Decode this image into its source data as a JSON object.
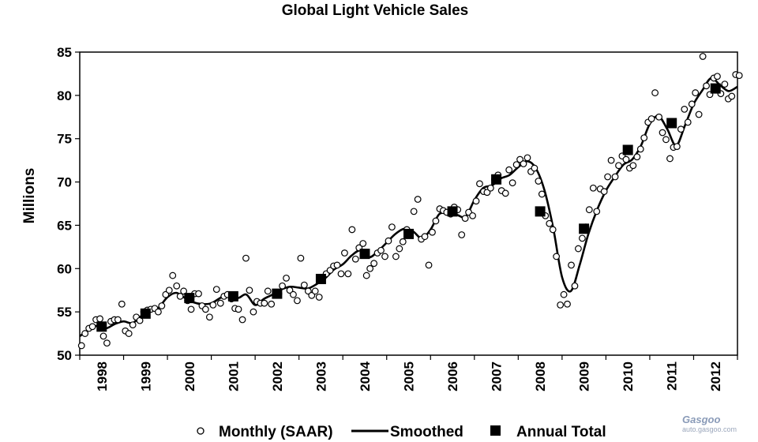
{
  "chart_data": {
    "type": "line",
    "title": "Global Light Vehicle Sales",
    "ylabel": "Millions",
    "xlabel": "",
    "ylim": [
      50,
      85
    ],
    "xlim": [
      1998.0,
      2013.0
    ],
    "yticks": [
      50,
      55,
      60,
      65,
      70,
      75,
      80,
      85
    ],
    "categories": [
      "1998",
      "1999",
      "2000",
      "2001",
      "2002",
      "2003",
      "2004",
      "2005",
      "2006",
      "2007",
      "2008",
      "2009",
      "2010",
      "2011",
      "2012"
    ],
    "grid": false,
    "legend_position": "bottom",
    "series": [
      {
        "name": "Monthly (SAAR)",
        "marker": "open-circle",
        "points": [
          [
            1998.04,
            51.1
          ],
          [
            1998.12,
            52.5
          ],
          [
            1998.21,
            53.1
          ],
          [
            1998.29,
            53.3
          ],
          [
            1998.37,
            54.1
          ],
          [
            1998.46,
            54.2
          ],
          [
            1998.54,
            52.2
          ],
          [
            1998.62,
            51.4
          ],
          [
            1998.71,
            53.9
          ],
          [
            1998.79,
            54.1
          ],
          [
            1998.87,
            54.1
          ],
          [
            1998.96,
            55.9
          ],
          [
            1999.04,
            52.8
          ],
          [
            1999.12,
            52.5
          ],
          [
            1999.21,
            53.5
          ],
          [
            1999.29,
            54.4
          ],
          [
            1999.37,
            54.0
          ],
          [
            1999.46,
            55.0
          ],
          [
            1999.54,
            55.2
          ],
          [
            1999.62,
            55.3
          ],
          [
            1999.71,
            55.4
          ],
          [
            1999.79,
            55.0
          ],
          [
            1999.87,
            55.7
          ],
          [
            1999.96,
            57.0
          ],
          [
            2000.04,
            57.5
          ],
          [
            2000.12,
            59.2
          ],
          [
            2000.21,
            58.0
          ],
          [
            2000.29,
            56.8
          ],
          [
            2000.37,
            57.4
          ],
          [
            2000.46,
            56.3
          ],
          [
            2000.54,
            55.3
          ],
          [
            2000.62,
            57.1
          ],
          [
            2000.71,
            57.1
          ],
          [
            2000.79,
            55.7
          ],
          [
            2000.87,
            55.3
          ],
          [
            2000.96,
            54.4
          ],
          [
            2001.04,
            55.8
          ],
          [
            2001.12,
            57.6
          ],
          [
            2001.21,
            56.0
          ],
          [
            2001.29,
            56.8
          ],
          [
            2001.37,
            57.0
          ],
          [
            2001.46,
            56.5
          ],
          [
            2001.54,
            55.4
          ],
          [
            2001.62,
            55.3
          ],
          [
            2001.71,
            54.1
          ],
          [
            2001.79,
            61.2
          ],
          [
            2001.87,
            57.5
          ],
          [
            2001.96,
            55.0
          ],
          [
            2002.04,
            56.2
          ],
          [
            2002.12,
            56.0
          ],
          [
            2002.21,
            56.0
          ],
          [
            2002.29,
            57.4
          ],
          [
            2002.37,
            55.9
          ],
          [
            2002.46,
            57.0
          ],
          [
            2002.54,
            57.1
          ],
          [
            2002.62,
            58.0
          ],
          [
            2002.71,
            58.9
          ],
          [
            2002.79,
            57.5
          ],
          [
            2002.87,
            57.0
          ],
          [
            2002.96,
            56.3
          ],
          [
            2003.04,
            61.2
          ],
          [
            2003.12,
            58.1
          ],
          [
            2003.21,
            57.4
          ],
          [
            2003.29,
            56.9
          ],
          [
            2003.37,
            57.4
          ],
          [
            2003.46,
            56.7
          ],
          [
            2003.54,
            58.9
          ],
          [
            2003.62,
            59.4
          ],
          [
            2003.71,
            59.8
          ],
          [
            2003.79,
            60.3
          ],
          [
            2003.87,
            60.4
          ],
          [
            2003.96,
            59.4
          ],
          [
            2004.04,
            61.8
          ],
          [
            2004.12,
            59.4
          ],
          [
            2004.21,
            64.5
          ],
          [
            2004.29,
            61.1
          ],
          [
            2004.37,
            62.4
          ],
          [
            2004.46,
            62.9
          ],
          [
            2004.54,
            59.2
          ],
          [
            2004.62,
            60.0
          ],
          [
            2004.71,
            60.6
          ],
          [
            2004.79,
            61.8
          ],
          [
            2004.87,
            62.1
          ],
          [
            2004.96,
            61.4
          ],
          [
            2005.04,
            63.2
          ],
          [
            2005.12,
            64.8
          ],
          [
            2005.21,
            61.4
          ],
          [
            2005.29,
            62.3
          ],
          [
            2005.37,
            63.1
          ],
          [
            2005.46,
            64.5
          ],
          [
            2005.54,
            64.0
          ],
          [
            2005.62,
            66.6
          ],
          [
            2005.71,
            68.0
          ],
          [
            2005.79,
            63.4
          ],
          [
            2005.87,
            63.7
          ],
          [
            2005.96,
            60.4
          ],
          [
            2006.04,
            64.2
          ],
          [
            2006.12,
            65.5
          ],
          [
            2006.21,
            66.9
          ],
          [
            2006.29,
            66.7
          ],
          [
            2006.37,
            66.5
          ],
          [
            2006.46,
            66.3
          ],
          [
            2006.54,
            67.1
          ],
          [
            2006.62,
            66.8
          ],
          [
            2006.71,
            63.9
          ],
          [
            2006.79,
            65.8
          ],
          [
            2006.87,
            66.5
          ],
          [
            2006.96,
            66.1
          ],
          [
            2007.04,
            67.8
          ],
          [
            2007.12,
            69.8
          ],
          [
            2007.21,
            68.9
          ],
          [
            2007.29,
            68.8
          ],
          [
            2007.37,
            69.3
          ],
          [
            2007.46,
            70.3
          ],
          [
            2007.54,
            70.8
          ],
          [
            2007.62,
            69.0
          ],
          [
            2007.71,
            68.7
          ],
          [
            2007.79,
            71.4
          ],
          [
            2007.87,
            69.9
          ],
          [
            2007.96,
            72.0
          ],
          [
            2008.04,
            72.6
          ],
          [
            2008.12,
            72.1
          ],
          [
            2008.21,
            72.8
          ],
          [
            2008.29,
            71.2
          ],
          [
            2008.37,
            71.6
          ],
          [
            2008.46,
            70.1
          ],
          [
            2008.54,
            68.6
          ],
          [
            2008.62,
            66.1
          ],
          [
            2008.71,
            65.2
          ],
          [
            2008.79,
            64.5
          ],
          [
            2008.87,
            61.4
          ],
          [
            2008.96,
            55.8
          ],
          [
            2009.04,
            57.0
          ],
          [
            2009.12,
            55.9
          ],
          [
            2009.21,
            60.4
          ],
          [
            2009.29,
            58.0
          ],
          [
            2009.37,
            62.3
          ],
          [
            2009.46,
            63.5
          ],
          [
            2009.54,
            64.8
          ],
          [
            2009.62,
            66.8
          ],
          [
            2009.71,
            69.3
          ],
          [
            2009.79,
            66.6
          ],
          [
            2009.87,
            69.2
          ],
          [
            2009.96,
            68.9
          ],
          [
            2010.04,
            70.6
          ],
          [
            2010.12,
            72.5
          ],
          [
            2010.21,
            70.6
          ],
          [
            2010.29,
            71.9
          ],
          [
            2010.37,
            73.0
          ],
          [
            2010.46,
            72.6
          ],
          [
            2010.54,
            71.6
          ],
          [
            2010.62,
            71.9
          ],
          [
            2010.71,
            72.9
          ],
          [
            2010.79,
            73.8
          ],
          [
            2010.87,
            75.1
          ],
          [
            2010.96,
            76.9
          ],
          [
            2011.04,
            77.3
          ],
          [
            2011.12,
            80.3
          ],
          [
            2011.21,
            77.5
          ],
          [
            2011.29,
            75.7
          ],
          [
            2011.37,
            74.9
          ],
          [
            2011.46,
            72.7
          ],
          [
            2011.54,
            74.0
          ],
          [
            2011.62,
            74.1
          ],
          [
            2011.71,
            76.1
          ],
          [
            2011.79,
            78.4
          ],
          [
            2011.87,
            76.9
          ],
          [
            2011.96,
            79.0
          ],
          [
            2012.04,
            80.3
          ],
          [
            2012.12,
            77.8
          ],
          [
            2012.21,
            84.5
          ],
          [
            2012.29,
            81.1
          ],
          [
            2012.37,
            80.1
          ],
          [
            2012.46,
            82.0
          ],
          [
            2012.54,
            82.2
          ],
          [
            2012.62,
            80.2
          ],
          [
            2012.71,
            81.3
          ],
          [
            2012.79,
            79.6
          ],
          [
            2012.87,
            79.9
          ],
          [
            2012.96,
            82.4
          ],
          [
            2013.04,
            82.3
          ]
        ]
      },
      {
        "name": "Smoothed",
        "marker": "line",
        "points": [
          [
            1998.0,
            52.2
          ],
          [
            1998.2,
            52.9
          ],
          [
            1998.4,
            53.4
          ],
          [
            1998.6,
            53.1
          ],
          [
            1998.8,
            53.6
          ],
          [
            1999.0,
            53.9
          ],
          [
            1999.2,
            53.7
          ],
          [
            1999.4,
            54.5
          ],
          [
            1999.6,
            55.0
          ],
          [
            1999.8,
            55.5
          ],
          [
            2000.0,
            56.7
          ],
          [
            2000.2,
            57.2
          ],
          [
            2000.4,
            56.6
          ],
          [
            2000.6,
            56.1
          ],
          [
            2000.8,
            55.9
          ],
          [
            2001.0,
            56.0
          ],
          [
            2001.2,
            56.6
          ],
          [
            2001.4,
            57.2
          ],
          [
            2001.6,
            56.6
          ],
          [
            2001.8,
            57.0
          ],
          [
            2002.0,
            55.8
          ],
          [
            2002.2,
            56.5
          ],
          [
            2002.4,
            57.0
          ],
          [
            2002.6,
            57.6
          ],
          [
            2002.8,
            57.9
          ],
          [
            2003.0,
            57.8
          ],
          [
            2003.2,
            57.7
          ],
          [
            2003.4,
            58.2
          ],
          [
            2003.6,
            58.9
          ],
          [
            2003.8,
            59.9
          ],
          [
            2004.0,
            60.5
          ],
          [
            2004.2,
            61.5
          ],
          [
            2004.4,
            62.1
          ],
          [
            2004.6,
            61.3
          ],
          [
            2004.8,
            62.0
          ],
          [
            2005.0,
            63.0
          ],
          [
            2005.2,
            64.0
          ],
          [
            2005.4,
            64.6
          ],
          [
            2005.6,
            64.3
          ],
          [
            2005.8,
            63.5
          ],
          [
            2006.0,
            64.5
          ],
          [
            2006.2,
            66.3
          ],
          [
            2006.4,
            66.3
          ],
          [
            2006.6,
            66.2
          ],
          [
            2006.8,
            66.0
          ],
          [
            2007.0,
            67.9
          ],
          [
            2007.2,
            69.3
          ],
          [
            2007.4,
            69.6
          ],
          [
            2007.6,
            70.4
          ],
          [
            2007.8,
            70.8
          ],
          [
            2008.0,
            71.7
          ],
          [
            2008.2,
            72.4
          ],
          [
            2008.4,
            71.6
          ],
          [
            2008.6,
            69.0
          ],
          [
            2008.8,
            64.6
          ],
          [
            2009.0,
            59.0
          ],
          [
            2009.2,
            57.4
          ],
          [
            2009.4,
            60.4
          ],
          [
            2009.6,
            64.0
          ],
          [
            2009.8,
            66.8
          ],
          [
            2010.0,
            69.0
          ],
          [
            2010.2,
            70.6
          ],
          [
            2010.4,
            72.0
          ],
          [
            2010.6,
            72.6
          ],
          [
            2010.8,
            74.2
          ],
          [
            2011.0,
            76.7
          ],
          [
            2011.2,
            77.6
          ],
          [
            2011.4,
            76.1
          ],
          [
            2011.6,
            74.2
          ],
          [
            2011.8,
            76.5
          ],
          [
            2012.0,
            79.0
          ],
          [
            2012.2,
            80.6
          ],
          [
            2012.4,
            82.0
          ],
          [
            2012.6,
            81.2
          ],
          [
            2012.8,
            80.5
          ],
          [
            2013.0,
            81.0
          ]
        ]
      },
      {
        "name": "Annual Total",
        "marker": "filled-square",
        "points": [
          [
            1998.5,
            53.3
          ],
          [
            1999.5,
            54.8
          ],
          [
            2000.5,
            56.6
          ],
          [
            2001.5,
            56.8
          ],
          [
            2002.5,
            57.1
          ],
          [
            2003.5,
            58.8
          ],
          [
            2004.5,
            61.7
          ],
          [
            2005.5,
            64.0
          ],
          [
            2006.5,
            66.6
          ],
          [
            2007.5,
            70.3
          ],
          [
            2008.5,
            66.6
          ],
          [
            2009.5,
            64.6
          ],
          [
            2010.5,
            73.7
          ],
          [
            2011.5,
            76.8
          ],
          [
            2012.5,
            80.8
          ]
        ]
      }
    ]
  },
  "watermark": {
    "logo": "Gasgoo",
    "url": "auto.gasgoo.com"
  }
}
